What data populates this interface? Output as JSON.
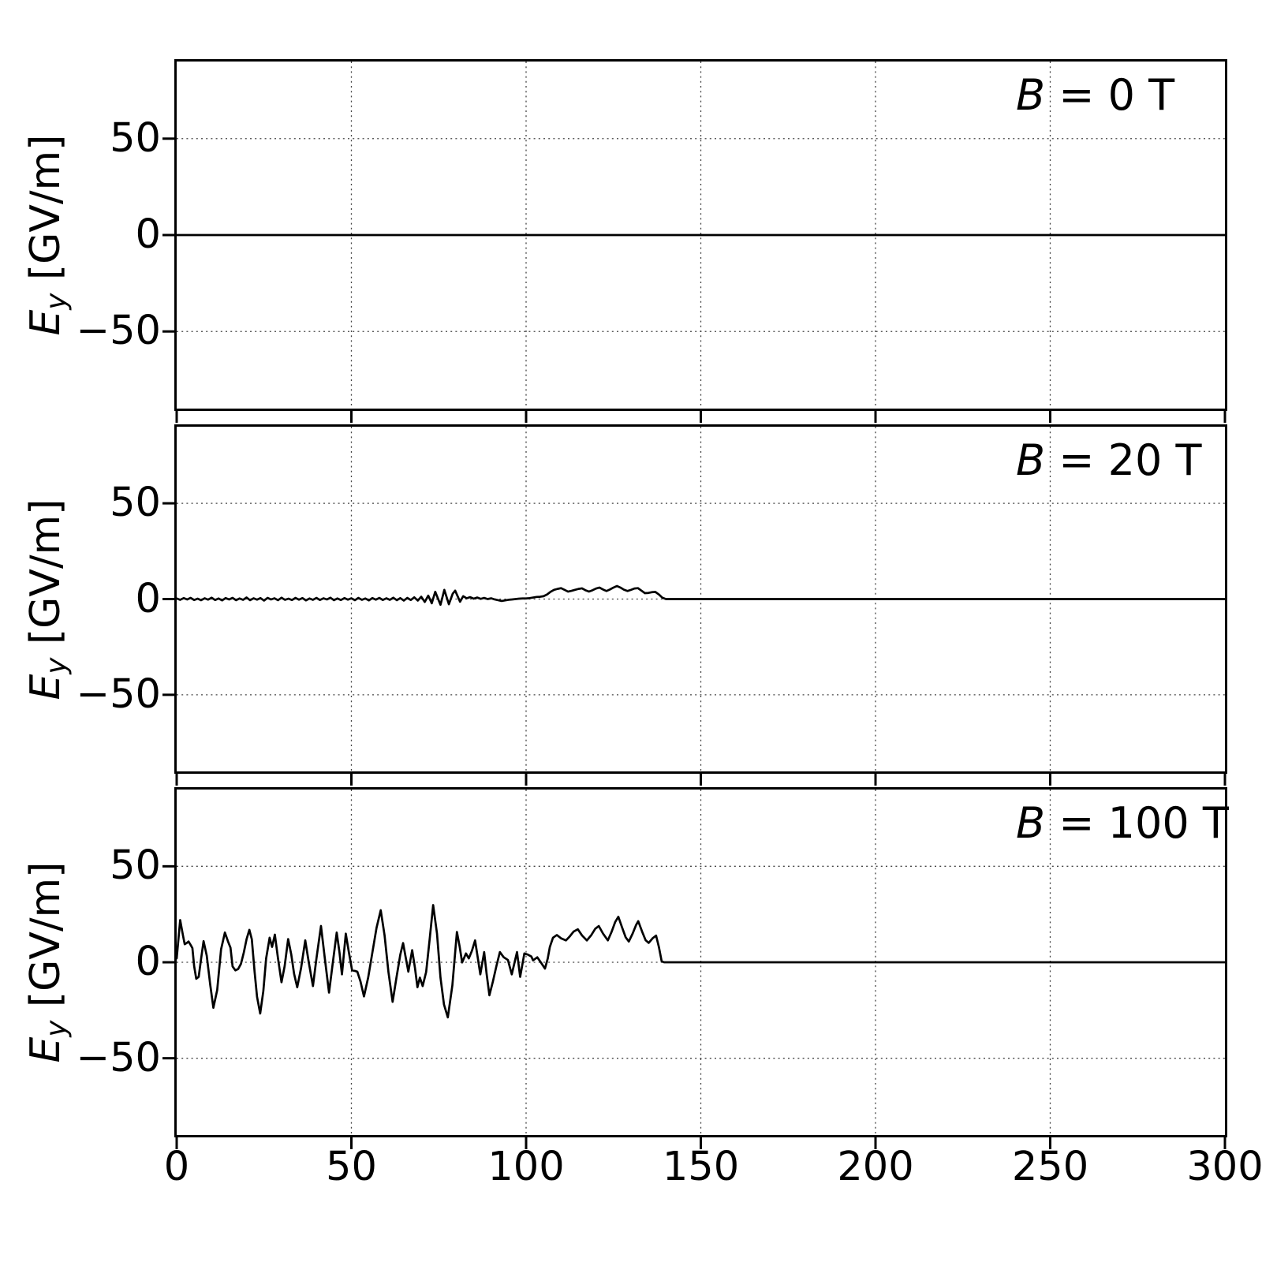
{
  "figure": {
    "background": "#ffffff",
    "line_color": "#000000",
    "grid_color": "#444444"
  },
  "chart_data": {
    "type": "line",
    "title": "",
    "xlabel": "",
    "ylabel": {
      "var": "E",
      "sub": "y",
      "unit": " [GV/m]"
    },
    "x_range": [
      0,
      300
    ],
    "y_range": [
      -90,
      90
    ],
    "x_ticks": [
      0,
      50,
      100,
      150,
      200,
      250,
      300
    ],
    "x_tick_labels": [
      "0",
      "50",
      "100",
      "150",
      "200",
      "250",
      "300"
    ],
    "y_ticks": [
      50,
      0,
      -50
    ],
    "y_tick_labels": [
      "50",
      "0",
      "−50"
    ],
    "grid": "dotted",
    "legend_position": "none",
    "panels": [
      {
        "annotation": {
          "var": "B",
          "rest": " = 0 T"
        },
        "series": [
          [
            0,
            0
          ],
          [
            300,
            0
          ]
        ]
      },
      {
        "annotation": {
          "var": "B",
          "rest": " = 20 T"
        },
        "series": [
          [
            0,
            0.3
          ],
          [
            1,
            -0.4
          ],
          [
            2,
            0.5
          ],
          [
            3,
            -0.2
          ],
          [
            4,
            0.6
          ],
          [
            5,
            -0.5
          ],
          [
            6,
            0.2
          ],
          [
            7,
            -0.6
          ],
          [
            8,
            0.4
          ],
          [
            9,
            -0.3
          ],
          [
            10,
            0.7
          ],
          [
            11,
            -0.5
          ],
          [
            12,
            0.3
          ],
          [
            13,
            -0.7
          ],
          [
            14,
            0.5
          ],
          [
            15,
            -0.2
          ],
          [
            16,
            0.6
          ],
          [
            17,
            -0.6
          ],
          [
            18,
            0.3
          ],
          [
            19,
            -0.4
          ],
          [
            20,
            0.8
          ],
          [
            21,
            -0.6
          ],
          [
            22,
            0.4
          ],
          [
            23,
            -0.3
          ],
          [
            24,
            0.5
          ],
          [
            25,
            -0.8
          ],
          [
            26,
            0.6
          ],
          [
            27,
            -0.2
          ],
          [
            28,
            0.4
          ],
          [
            29,
            -0.6
          ],
          [
            30,
            0.7
          ],
          [
            31,
            -0.4
          ],
          [
            32,
            0.2
          ],
          [
            33,
            -0.5
          ],
          [
            34,
            0.6
          ],
          [
            35,
            -0.3
          ],
          [
            36,
            0.5
          ],
          [
            37,
            -0.7
          ],
          [
            38,
            0.3
          ],
          [
            39,
            -0.4
          ],
          [
            40,
            0.6
          ],
          [
            41,
            -0.5
          ],
          [
            42,
            0.4
          ],
          [
            43,
            -0.2
          ],
          [
            44,
            0.7
          ],
          [
            45,
            -0.6
          ],
          [
            46,
            0.3
          ],
          [
            47,
            -0.5
          ],
          [
            48,
            0.5
          ],
          [
            49,
            -0.3
          ],
          [
            50,
            0.4
          ],
          [
            51,
            -0.6
          ],
          [
            52,
            0.6
          ],
          [
            53,
            -0.4
          ],
          [
            54,
            0.3
          ],
          [
            55,
            -0.7
          ],
          [
            56,
            0.5
          ],
          [
            57,
            -0.3
          ],
          [
            58,
            0.6
          ],
          [
            59,
            -0.5
          ],
          [
            60,
            0.4
          ],
          [
            61,
            -0.4
          ],
          [
            62,
            0.7
          ],
          [
            63,
            -0.6
          ],
          [
            64,
            0.5
          ],
          [
            65,
            -0.8
          ],
          [
            66,
            0.6
          ],
          [
            67,
            -0.5
          ],
          [
            68,
            0.9
          ],
          [
            69,
            -0.8
          ],
          [
            70,
            1.2
          ],
          [
            71,
            -1.5
          ],
          [
            72,
            1.8
          ],
          [
            73,
            -2.2
          ],
          [
            74,
            3.8
          ],
          [
            75.5,
            -3.0
          ],
          [
            76.6,
            4.8
          ],
          [
            77.9,
            -2.7
          ],
          [
            79,
            2.8
          ],
          [
            79.7,
            4.4
          ],
          [
            81.1,
            -1.4
          ],
          [
            82,
            1.5
          ],
          [
            83,
            0.4
          ],
          [
            84,
            1.0
          ],
          [
            85,
            0.2
          ],
          [
            86,
            0.8
          ],
          [
            87,
            0.1
          ],
          [
            88,
            0.6
          ],
          [
            89,
            0.0
          ],
          [
            90,
            0.4
          ],
          [
            91,
            -0.2
          ],
          [
            92,
            -0.6
          ],
          [
            93,
            -1.0
          ],
          [
            94,
            -0.7
          ],
          [
            95,
            -0.4
          ],
          [
            96,
            -0.2
          ],
          [
            97,
            0.0
          ],
          [
            98,
            0.2
          ],
          [
            99,
            0.3
          ],
          [
            100,
            0.3
          ],
          [
            101,
            0.5
          ],
          [
            102,
            0.8
          ],
          [
            103,
            1.1
          ],
          [
            104,
            1.2
          ],
          [
            105,
            1.5
          ],
          [
            106,
            2.4
          ],
          [
            107,
            3.8
          ],
          [
            108,
            4.8
          ],
          [
            109,
            5.3
          ],
          [
            110,
            5.7
          ],
          [
            111,
            4.8
          ],
          [
            112,
            3.9
          ],
          [
            113,
            4.3
          ],
          [
            114,
            4.8
          ],
          [
            115,
            5.3
          ],
          [
            116,
            5.6
          ],
          [
            117,
            4.6
          ],
          [
            118,
            3.9
          ],
          [
            119,
            4.6
          ],
          [
            120,
            5.5
          ],
          [
            121,
            6.0
          ],
          [
            122,
            5.0
          ],
          [
            123,
            4.2
          ],
          [
            124,
            5.0
          ],
          [
            125,
            6.0
          ],
          [
            126,
            6.8
          ],
          [
            127,
            6.0
          ],
          [
            128,
            4.9
          ],
          [
            129,
            4.2
          ],
          [
            130,
            4.8
          ],
          [
            131,
            5.5
          ],
          [
            132,
            5.7
          ],
          [
            133,
            4.4
          ],
          [
            134,
            3.1
          ],
          [
            135,
            3.2
          ],
          [
            136,
            3.6
          ],
          [
            137,
            3.7
          ],
          [
            138,
            2.4
          ],
          [
            139,
            0.7
          ],
          [
            140,
            0
          ],
          [
            300,
            0
          ]
        ]
      },
      {
        "annotation": {
          "var": "B",
          "rest": " = 100 T"
        },
        "series": [
          [
            0,
            2
          ],
          [
            1,
            22
          ],
          [
            1.8,
            14
          ],
          [
            2.3,
            9.4
          ],
          [
            3,
            10.2
          ],
          [
            3.4,
            10.8
          ],
          [
            4,
            9
          ],
          [
            4.5,
            7.4
          ],
          [
            5,
            -2
          ],
          [
            5.6,
            -8.6
          ],
          [
            6.3,
            -7.6
          ],
          [
            7,
            2
          ],
          [
            7.7,
            11
          ],
          [
            8.6,
            3.5
          ],
          [
            9.6,
            -11.7
          ],
          [
            10.5,
            -23.7
          ],
          [
            11.6,
            -14.4
          ],
          [
            12.7,
            6.7
          ],
          [
            13.8,
            15.5
          ],
          [
            14.7,
            10.8
          ],
          [
            15.4,
            7.6
          ],
          [
            16,
            -2.2
          ],
          [
            16.8,
            -4.2
          ],
          [
            17.6,
            -3.5
          ],
          [
            18.4,
            -0.8
          ],
          [
            19.2,
            5
          ],
          [
            20,
            12
          ],
          [
            20.8,
            16.9
          ],
          [
            21.5,
            12
          ],
          [
            22.3,
            -5
          ],
          [
            23,
            -18
          ],
          [
            23.9,
            -26.7
          ],
          [
            24.8,
            -15
          ],
          [
            25.6,
            2
          ],
          [
            26.6,
            12.8
          ],
          [
            27.3,
            8
          ],
          [
            28.1,
            14.4
          ],
          [
            29,
            2
          ],
          [
            30,
            -10.4
          ],
          [
            30.9,
            -2
          ],
          [
            31.9,
            12.1
          ],
          [
            32.8,
            4
          ],
          [
            33.6,
            -6
          ],
          [
            34.5,
            -13
          ],
          [
            35.6,
            -3
          ],
          [
            36.8,
            11.4
          ],
          [
            37.8,
            0
          ],
          [
            39,
            -12.4
          ],
          [
            40,
            2
          ],
          [
            41.3,
            18.9
          ],
          [
            42.4,
            2
          ],
          [
            43.6,
            -15.8
          ],
          [
            44.7,
            0
          ],
          [
            45.8,
            15.5
          ],
          [
            46.6,
            5
          ],
          [
            47.3,
            -6.3
          ],
          [
            48.4,
            14.9
          ],
          [
            49.3,
            5
          ],
          [
            50.2,
            -4.2
          ],
          [
            51,
            -4.5
          ],
          [
            51.7,
            -4.9
          ],
          [
            52.6,
            -10
          ],
          [
            53.6,
            -17.8
          ],
          [
            54.8,
            -8
          ],
          [
            56,
            5
          ],
          [
            57.2,
            18
          ],
          [
            58.4,
            27.1
          ],
          [
            59.5,
            14
          ],
          [
            60.6,
            -5
          ],
          [
            61.8,
            -20.6
          ],
          [
            62.9,
            -8
          ],
          [
            64,
            4
          ],
          [
            64.8,
            10
          ],
          [
            65.5,
            3
          ],
          [
            66.3,
            -4.9
          ],
          [
            67.4,
            6.3
          ],
          [
            68.2,
            -3
          ],
          [
            68.9,
            -13
          ],
          [
            69.6,
            -8
          ],
          [
            70.4,
            -12.4
          ],
          [
            71.4,
            -5
          ],
          [
            72.4,
            12
          ],
          [
            73.4,
            29.8
          ],
          [
            74.5,
            15
          ],
          [
            75.5,
            -8
          ],
          [
            76.5,
            -22
          ],
          [
            77.6,
            -28.7
          ],
          [
            78.9,
            -12
          ],
          [
            80.2,
            15.8
          ],
          [
            81,
            8
          ],
          [
            81.7,
            -0.1
          ],
          [
            82.8,
            4.6
          ],
          [
            83.6,
            2
          ],
          [
            84.5,
            6
          ],
          [
            85.4,
            11.4
          ],
          [
            86.2,
            2
          ],
          [
            86.9,
            -6.3
          ],
          [
            88,
            5.3
          ],
          [
            88.7,
            -6
          ],
          [
            89.5,
            -17.2
          ],
          [
            90.5,
            -10
          ],
          [
            91.5,
            -2
          ],
          [
            92.5,
            5.3
          ],
          [
            93.6,
            2.6
          ],
          [
            94.8,
            1.2
          ],
          [
            95.9,
            -6.3
          ],
          [
            97.4,
            5.3
          ],
          [
            98.3,
            -7.6
          ],
          [
            99.5,
            4.6
          ],
          [
            100.5,
            4
          ],
          [
            101.5,
            3
          ],
          [
            102,
            1
          ],
          [
            103.2,
            2.6
          ],
          [
            104.2,
            0
          ],
          [
            105.4,
            -3.3
          ],
          [
            106.2,
            2
          ],
          [
            106.8,
            8
          ],
          [
            107.7,
            12.8
          ],
          [
            108.8,
            14.2
          ],
          [
            110,
            12.5
          ],
          [
            111.4,
            11.4
          ],
          [
            112.5,
            13.5
          ],
          [
            113.6,
            16
          ],
          [
            114.8,
            17.2
          ],
          [
            116,
            14
          ],
          [
            117.4,
            11.4
          ],
          [
            118.6,
            14
          ],
          [
            119.8,
            17.5
          ],
          [
            120.8,
            18.9
          ],
          [
            122,
            15
          ],
          [
            123.4,
            11.4
          ],
          [
            124.5,
            16
          ],
          [
            125.5,
            21
          ],
          [
            126.4,
            23.7
          ],
          [
            127.5,
            18
          ],
          [
            128.5,
            13
          ],
          [
            129.4,
            10.8
          ],
          [
            130.5,
            15
          ],
          [
            131.5,
            19.5
          ],
          [
            132.1,
            21.4
          ],
          [
            133.2,
            16
          ],
          [
            134.2,
            11.5
          ],
          [
            135.1,
            10.1
          ],
          [
            136.2,
            12.5
          ],
          [
            137.2,
            13.9
          ],
          [
            138,
            8
          ],
          [
            138.8,
            0.5
          ],
          [
            139.5,
            0
          ],
          [
            300,
            0
          ]
        ]
      }
    ]
  }
}
